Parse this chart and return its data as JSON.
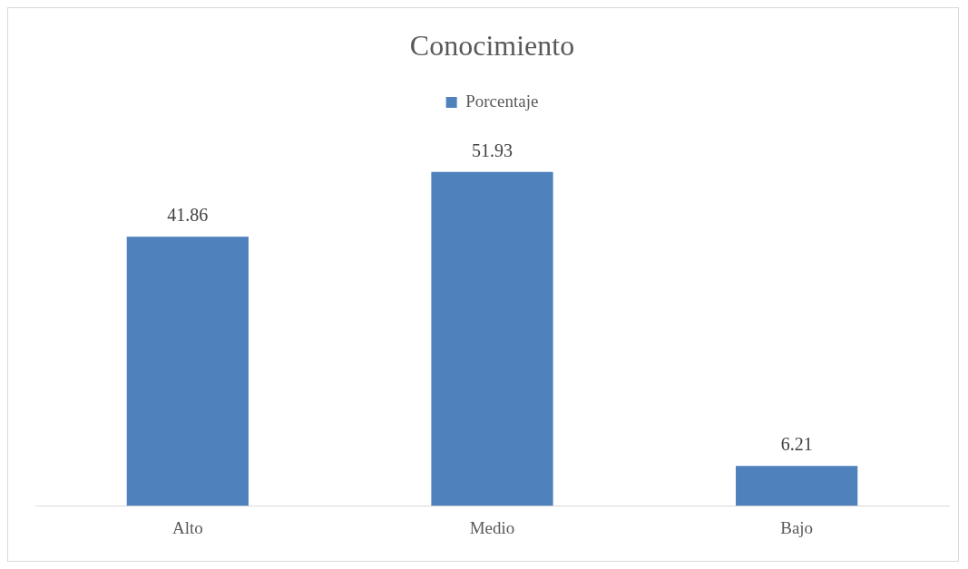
{
  "chart_data": {
    "type": "bar",
    "title": "Conocimiento",
    "categories": [
      "Alto",
      "Medio",
      "Bajo"
    ],
    "series": [
      {
        "name": "Porcentaje",
        "color": "#4f81bd",
        "values": [
          41.86,
          51.93,
          6.21
        ]
      }
    ],
    "data_labels": true,
    "legend": "top",
    "grid": false
  }
}
